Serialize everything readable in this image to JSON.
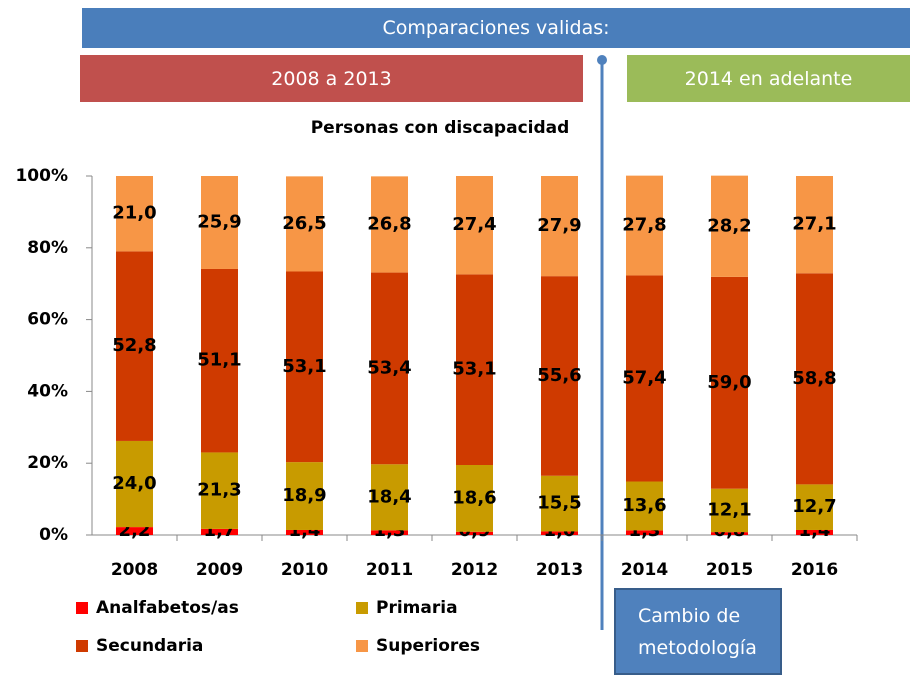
{
  "chart_data": {
    "type": "stacked_bar",
    "title": "Personas con discapacidad",
    "annotations": {
      "banner": "Comparaciones validas:",
      "period_1": "2008 a 2013",
      "period_2": "2014 en adelante",
      "note": "Cambio de metodología"
    },
    "categories": [
      "2008",
      "2009",
      "2010",
      "2011",
      "2012",
      "2013",
      "2014",
      "2015",
      "2016"
    ],
    "series": [
      {
        "name": "Analfabetos/as",
        "color": "#ff0000",
        "values": [
          2.2,
          1.7,
          1.4,
          1.3,
          0.9,
          1.0,
          1.3,
          0.8,
          1.4
        ],
        "value_labels": [
          "2,2",
          "1,7",
          "1,4",
          "1,3",
          "0,9",
          "1,0",
          "1,3",
          "0,8",
          "1,4"
        ]
      },
      {
        "name": "Primaria",
        "color": "#c89b00",
        "values": [
          24.0,
          21.3,
          18.9,
          18.4,
          18.6,
          15.5,
          13.6,
          12.1,
          12.7
        ],
        "value_labels": [
          "24,0",
          "21,3",
          "18,9",
          "18,4",
          "18,6",
          "15,5",
          "13,6",
          "12,1",
          "12,7"
        ]
      },
      {
        "name": "Secundaria",
        "color": "#cf3a00",
        "values": [
          52.8,
          51.1,
          53.1,
          53.4,
          53.1,
          55.6,
          57.4,
          59.0,
          58.8
        ],
        "value_labels": [
          "52,8",
          "51,1",
          "53,1",
          "53,4",
          "53,1",
          "55,6",
          "57,4",
          "59,0",
          "58,8"
        ]
      },
      {
        "name": "Superiores",
        "color": "#f79646",
        "values": [
          21.0,
          25.9,
          26.5,
          26.8,
          27.4,
          27.9,
          27.8,
          28.2,
          27.1
        ],
        "value_labels": [
          "21,0",
          "25,9",
          "26,5",
          "26,8",
          "27,4",
          "27,9",
          "27,8",
          "28,2",
          "27,1"
        ]
      }
    ],
    "ylim": [
      0,
      100
    ],
    "yticks": [
      {
        "value": 0,
        "label": "0%"
      },
      {
        "value": 20,
        "label": "20%"
      },
      {
        "value": 40,
        "label": "40%"
      },
      {
        "value": 60,
        "label": "60%"
      },
      {
        "value": 80,
        "label": "80%"
      },
      {
        "value": 100,
        "label": "100%"
      }
    ],
    "grid": false
  }
}
